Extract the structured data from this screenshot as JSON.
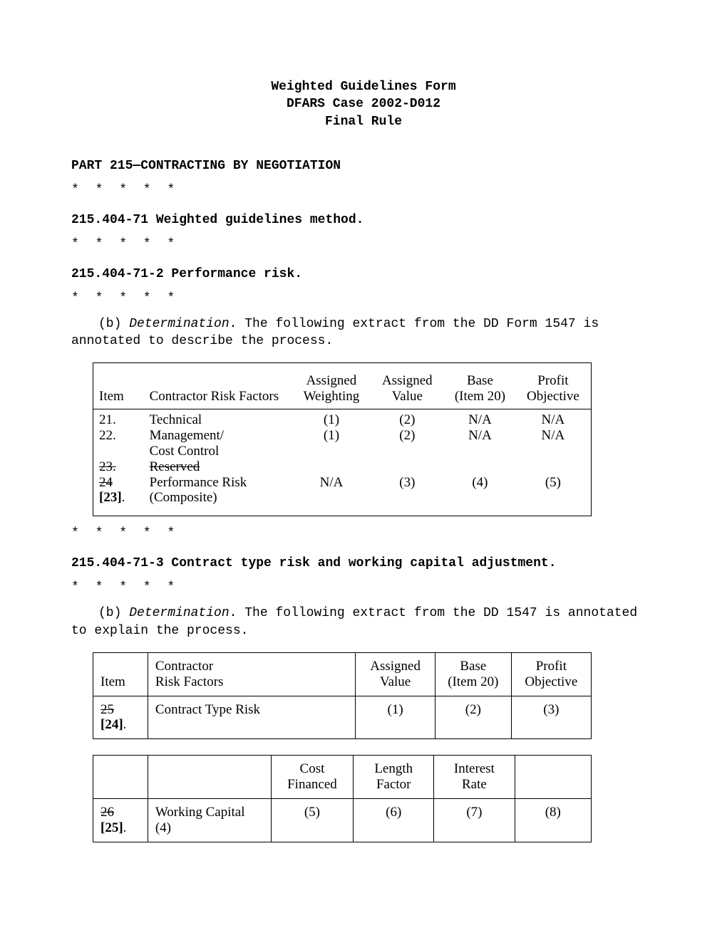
{
  "header": {
    "line1": "Weighted Guidelines Form",
    "line2": "DFARS Case 2002-D012",
    "line3": "Final Rule"
  },
  "part_heading": "PART 215—CONTRACTING BY NEGOTIATION",
  "stars": "* * * * *",
  "sec_71": "215.404-71  Weighted guidelines method.",
  "sec_71_2": "215.404-71-2  Performance risk.",
  "para_71_2_prefix": "(b)  ",
  "para_71_2_italic": "Determination",
  "para_71_2_rest": ".  The following extract from the DD Form 1547 is annotated to describe the process.",
  "table1": {
    "headers": {
      "item": "Item",
      "risk": "Contractor Risk Factors",
      "weight_l1": "Assigned",
      "weight_l2": "Weighting",
      "value_l1": "Assigned",
      "value_l2": "Value",
      "base_l1": "Base",
      "base_l2": "(Item 20)",
      "profit_l1": "Profit",
      "profit_l2": "Objective"
    },
    "rows": {
      "r1": {
        "item": "21.",
        "risk": "Technical",
        "w": "(1)",
        "v": "(2)",
        "b": "N/A",
        "p": "N/A"
      },
      "r2": {
        "item": "22.",
        "risk_l1": "Management/",
        "risk_l2": "Cost Control",
        "w": "(1)",
        "v": "(2)",
        "b": "N/A",
        "p": "N/A"
      },
      "r3": {
        "item": "23.",
        "risk": "Reserved"
      },
      "r4a_item": "24",
      "r4b_item": "[23]",
      "r4_risk_l1": "Performance Risk",
      "r4_risk_l2": "(Composite)",
      "r4_w": "N/A",
      "r4_v": "(3)",
      "r4_b": "(4)",
      "r4_p": "(5)"
    }
  },
  "sec_71_3": "215.404-71-3  Contract type risk and working capital adjustment.",
  "para_71_3_prefix": "(b)  ",
  "para_71_3_italic": "Determination",
  "para_71_3_rest": ".  The following extract from the DD 1547 is annotated to explain the process.",
  "table2": {
    "headers": {
      "item": "Item",
      "risk_l1": "Contractor",
      "risk_l2": "Risk Factors",
      "value_l1": "Assigned",
      "value_l2": "Value",
      "base_l1": "Base",
      "base_l2": "(Item 20)",
      "profit_l1": "Profit",
      "profit_l2": "Objective"
    },
    "row": {
      "item_strike": "25",
      "item_new": "[24]",
      "dot": ".",
      "risk": "Contract Type Risk",
      "v": "(1)",
      "b": "(2)",
      "p": "(3)"
    }
  },
  "table3": {
    "headers": {
      "cost_l1": "Cost",
      "cost_l2": "Financed",
      "len_l1": "Length",
      "len_l2": "Factor",
      "int_l1": "Interest",
      "int_l2": "Rate"
    },
    "row": {
      "item_strike": "26",
      "item_new": "[25]",
      "dot": ".",
      "label": "Working Capital (4)",
      "c": "(5)",
      "l": "(6)",
      "i": "(7)",
      "last": "(8)"
    }
  }
}
